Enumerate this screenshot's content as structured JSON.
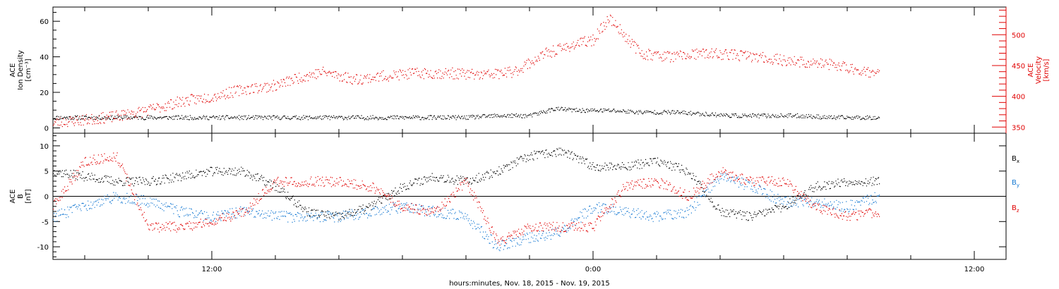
{
  "chart_data": [
    {
      "type": "scatter",
      "panel": "top",
      "ylabel_left": [
        "ACE",
        "Ion Density",
        "[cm⁻³]"
      ],
      "ylabel_right": [
        "ACE",
        "Velocity",
        "[km/s]"
      ],
      "ylim_left": [
        -3,
        68
      ],
      "ylim_right": [
        340,
        545
      ],
      "yticks_left": [
        "0",
        "20",
        "40",
        "60"
      ],
      "yticks_left_values": [
        0,
        20,
        40,
        60
      ],
      "yticks_right": [
        "350",
        "400",
        "450",
        "500"
      ],
      "yticks_right_values": [
        350,
        400,
        450,
        500
      ],
      "xlim_hours": [
        7,
        37
      ],
      "series": [
        {
          "axis": "left",
          "color": "#000000",
          "x_hours": [
            7.0,
            8.0,
            9.0,
            10.0,
            11.0,
            12.0,
            13.0,
            14.0,
            15.0,
            16.0,
            17.0,
            18.0,
            19.0,
            20.0,
            21.0,
            22.0,
            22.8,
            23.5,
            24.5,
            25.5,
            26.5,
            27.5,
            28.5,
            29.5,
            30.5,
            31.5,
            32.5,
            33.0
          ],
          "values": [
            6,
            6,
            6,
            6,
            6,
            6,
            6,
            6,
            6,
            6,
            6,
            6,
            6,
            6,
            7,
            7,
            11,
            10,
            10,
            9,
            9,
            8,
            7,
            7,
            7,
            6,
            6,
            6
          ]
        },
        {
          "axis": "right",
          "color": "#e00000",
          "x_hours": [
            7.0,
            8.0,
            9.0,
            10.0,
            11.0,
            12.0,
            13.0,
            14.0,
            14.8,
            15.5,
            16.5,
            17.5,
            18.5,
            19.5,
            20.5,
            21.5,
            22.5,
            23.5,
            24.0,
            24.5,
            25.5,
            26.5,
            27.5,
            28.5,
            29.5,
            30.5,
            31.5,
            32.5,
            33.0
          ],
          "values": [
            358,
            362,
            368,
            378,
            392,
            400,
            412,
            418,
            432,
            440,
            428,
            434,
            438,
            438,
            435,
            440,
            470,
            486,
            492,
            528,
            470,
            465,
            470,
            468,
            462,
            456,
            452,
            442,
            436
          ]
        }
      ]
    },
    {
      "type": "scatter",
      "panel": "bottom",
      "ylabel": [
        "ACE",
        "B",
        "[nT]"
      ],
      "ylim": [
        -12.5,
        12.5
      ],
      "yticks": [
        "-10",
        "-5",
        "0",
        "5",
        "10"
      ],
      "yticks_values": [
        -10,
        -5,
        0,
        5,
        10
      ],
      "xlim_hours": [
        7,
        37
      ],
      "series": [
        {
          "name": "Bx",
          "color": "#000000",
          "x_hours": [
            7.0,
            8.0,
            9.0,
            10.0,
            11.0,
            12.0,
            13.0,
            14.0,
            15.0,
            16.0,
            17.0,
            18.0,
            19.0,
            20.0,
            21.0,
            22.0,
            23.0,
            24.0,
            25.0,
            26.0,
            27.0,
            28.0,
            29.0,
            30.0,
            31.0,
            32.0,
            33.0
          ],
          "values": [
            5,
            4,
            3,
            3,
            4,
            5,
            5,
            2,
            -3,
            -4,
            -2,
            2,
            4,
            3,
            5,
            8,
            9,
            6,
            6,
            7,
            5,
            -3,
            -4,
            -2,
            2,
            3,
            3
          ]
        },
        {
          "name": "By",
          "color": "#1478d2",
          "x_hours": [
            7.0,
            8.0,
            9.0,
            10.0,
            11.0,
            12.0,
            13.0,
            14.0,
            15.0,
            16.0,
            17.0,
            18.0,
            19.0,
            20.0,
            21.0,
            22.0,
            23.0,
            24.0,
            25.0,
            26.0,
            27.0,
            28.0,
            29.0,
            30.0,
            31.0,
            32.0,
            33.0
          ],
          "values": [
            -4,
            -2,
            0,
            -1,
            -3,
            -4,
            -3,
            -4,
            -4,
            -4,
            -3,
            -2,
            -3,
            -4,
            -10,
            -8,
            -7,
            -2,
            -3,
            -4,
            -3,
            4,
            2,
            -1,
            -1,
            -2,
            0
          ]
        },
        {
          "name": "Bz",
          "color": "#e00000",
          "x_hours": [
            7.0,
            8.0,
            9.0,
            10.0,
            11.0,
            12.0,
            13.0,
            14.0,
            15.0,
            16.0,
            17.0,
            18.0,
            19.0,
            20.0,
            21.0,
            22.0,
            23.0,
            24.0,
            25.0,
            26.0,
            27.0,
            28.0,
            29.0,
            30.0,
            31.0,
            32.0,
            33.0
          ],
          "values": [
            -2,
            7,
            8,
            -6,
            -6,
            -5,
            -3,
            3,
            3,
            3,
            2,
            -2,
            -3,
            3,
            -9,
            -6,
            -6,
            -6,
            2,
            3,
            0,
            5,
            3,
            3,
            -2,
            -4,
            -3
          ]
        }
      ],
      "legend": [
        {
          "label": "B",
          "sub": "x",
          "color": "#000000"
        },
        {
          "label": "B",
          "sub": "y",
          "color": "#1478d2"
        },
        {
          "label": "B",
          "sub": "z",
          "color": "#e00000"
        }
      ]
    }
  ],
  "xaxis": {
    "tick_labels": [
      "12:00",
      "0:00",
      "12:00"
    ],
    "tick_hours": [
      12,
      24,
      36
    ],
    "minor_tick_hours": [
      8,
      10,
      14,
      16,
      18,
      20,
      22,
      26,
      28,
      30,
      32,
      34
    ],
    "title": "hours:minutes, Nov. 18, 2015 - Nov. 19, 2015"
  }
}
